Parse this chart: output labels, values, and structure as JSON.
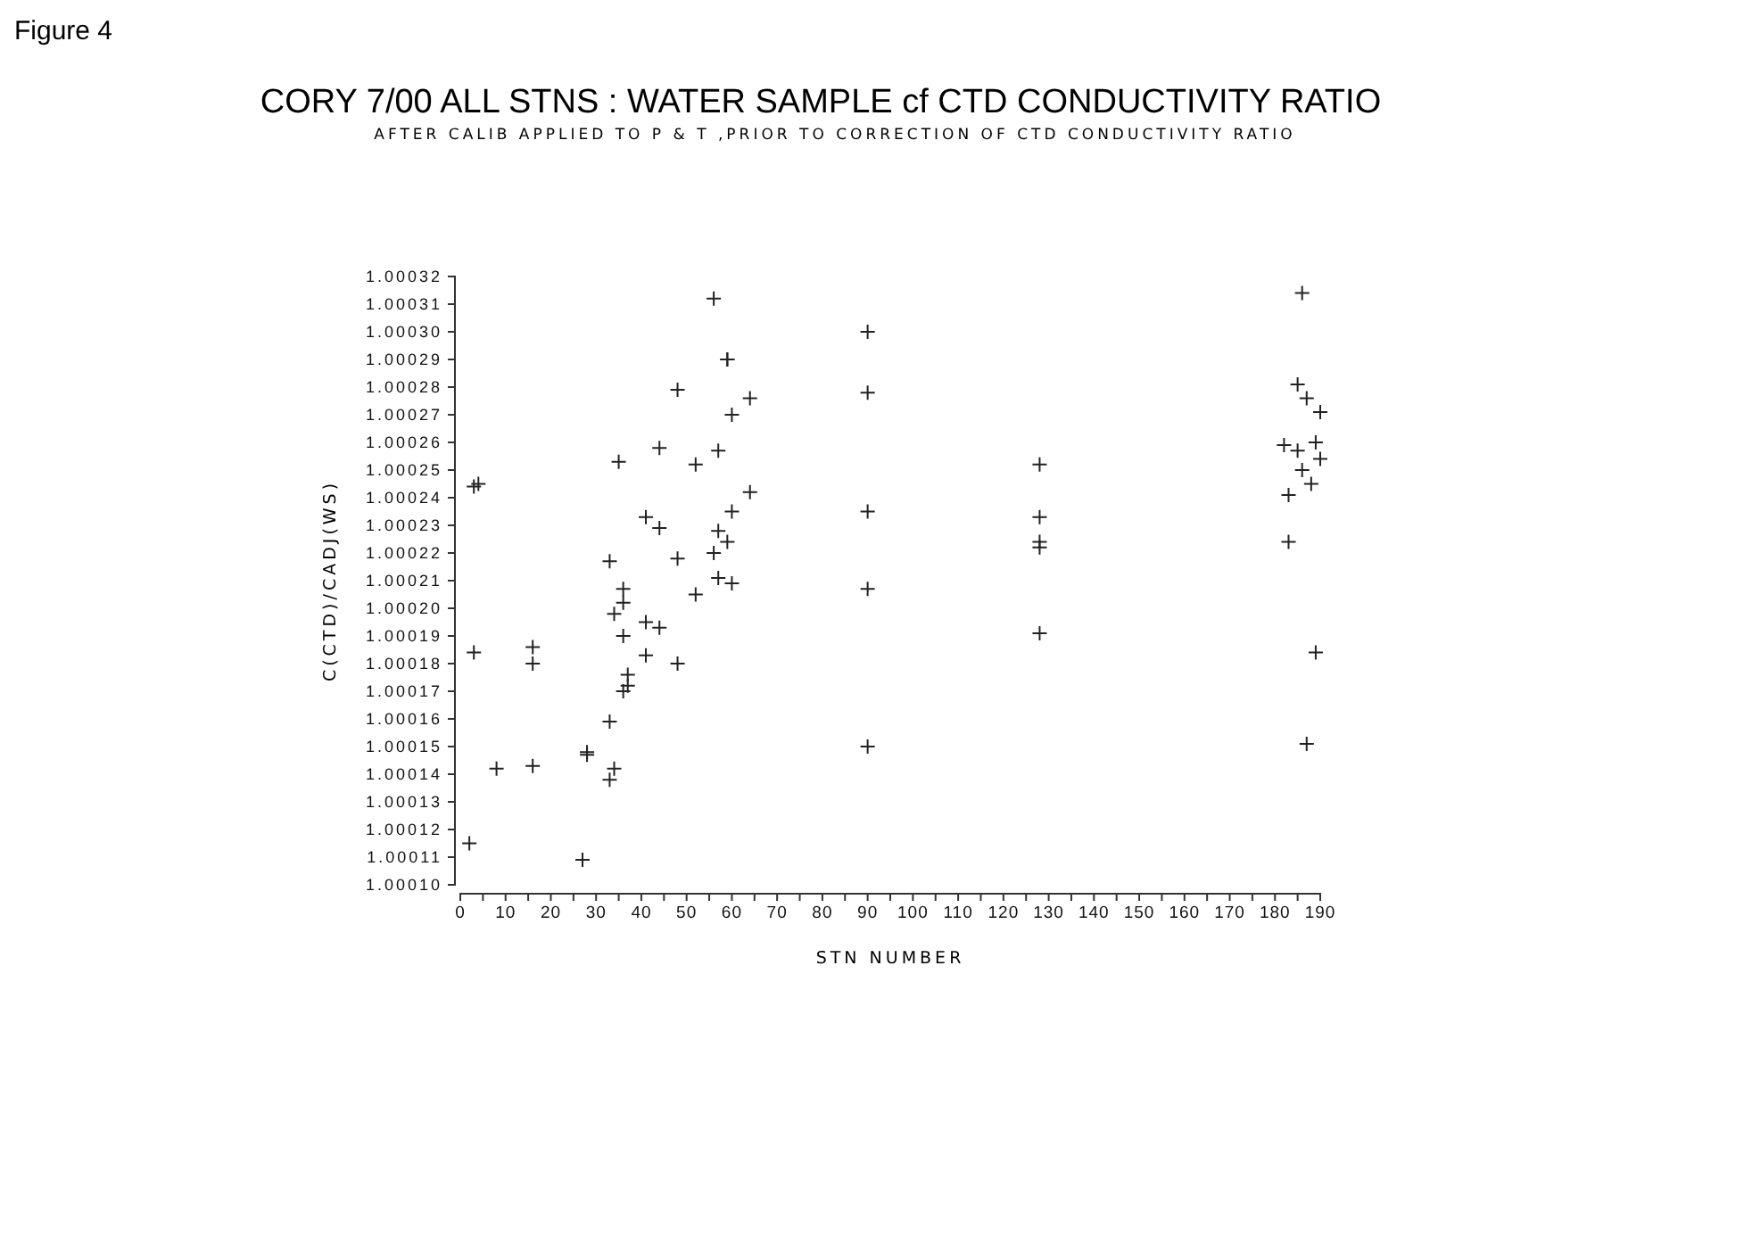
{
  "chart_data": {
    "type": "scatter",
    "title": "CORY 7/00 ALL STNS : WATER SAMPLE cf CTD CONDUCTIVITY RATIO",
    "subtitle": "AFTER CALIB APPLIED TO P & T ,PRIOR TO CORRECTION OF CTD CONDUCTIVITY RATIO",
    "annotations": [
      "Figure 4"
    ],
    "xlabel": "STN NUMBER",
    "ylabel": "C(CTD)/CADJ(WS)",
    "marker": "cross",
    "grid": false,
    "xlim": [
      0,
      190
    ],
    "ylim": [
      1.0001,
      1.00032
    ],
    "xticks": [
      0,
      {
        "value": 5,
        "label": null
      },
      10,
      {
        "value": 15,
        "label": null
      },
      20,
      {
        "value": 25,
        "label": null
      },
      30,
      {
        "value": 35,
        "label": null
      },
      40,
      {
        "value": 45,
        "label": null
      },
      50,
      {
        "value": 55,
        "label": null
      },
      60,
      {
        "value": 65,
        "label": null
      },
      70,
      {
        "value": 75,
        "label": null
      },
      80,
      {
        "value": 85,
        "label": null
      },
      90,
      {
        "value": 95,
        "label": null
      },
      100,
      {
        "value": 105,
        "label": null
      },
      110,
      {
        "value": 115,
        "label": null
      },
      120,
      {
        "value": 125,
        "label": null
      },
      130,
      {
        "value": 135,
        "label": null
      },
      140,
      {
        "value": 145,
        "label": null
      },
      150,
      {
        "value": 155,
        "label": null
      },
      160,
      {
        "value": 165,
        "label": null
      },
      170,
      {
        "value": 175,
        "label": null
      },
      180,
      {
        "value": 185,
        "label": null
      },
      190
    ],
    "yticks": [
      {
        "value": 1.0001,
        "label": "1.00010"
      },
      {
        "value": 1.00011,
        "label": "1.00011"
      },
      {
        "value": 1.00012,
        "label": "1.00012"
      },
      {
        "value": 1.00013,
        "label": "1.00013"
      },
      {
        "value": 1.00014,
        "label": "1.00014"
      },
      {
        "value": 1.00015,
        "label": "1.00015"
      },
      {
        "value": 1.00016,
        "label": "1.00016"
      },
      {
        "value": 1.00017,
        "label": "1.00017"
      },
      {
        "value": 1.00018,
        "label": "1.00018"
      },
      {
        "value": 1.00019,
        "label": "1.00019"
      },
      {
        "value": 1.0002,
        "label": "1.00020"
      },
      {
        "value": 1.00021,
        "label": "1.00021"
      },
      {
        "value": 1.00022,
        "label": "1.00022"
      },
      {
        "value": 1.00023,
        "label": "1.00023"
      },
      {
        "value": 1.00024,
        "label": "1.00024"
      },
      {
        "value": 1.00025,
        "label": "1.00025"
      },
      {
        "value": 1.00026,
        "label": "1.00026"
      },
      {
        "value": 1.00027,
        "label": "1.00027"
      },
      {
        "value": 1.00028,
        "label": "1.00028"
      },
      {
        "value": 1.00029,
        "label": "1.00029"
      },
      {
        "value": 1.0003,
        "label": "1.00030"
      },
      {
        "value": 1.00031,
        "label": "1.00031"
      },
      {
        "value": 1.00032,
        "label": "1.00032"
      }
    ],
    "series": [
      {
        "color": "#222222",
        "x": [
          2,
          3,
          4,
          3,
          8,
          16,
          16,
          16,
          28,
          28,
          27,
          34,
          33,
          33,
          33,
          35,
          36,
          36,
          34,
          36,
          37,
          37,
          36,
          41,
          41,
          41,
          44,
          44,
          44,
          48,
          48,
          48,
          52,
          52,
          56,
          56,
          57,
          57,
          57,
          59,
          59,
          59,
          60,
          60,
          60,
          64,
          64,
          90,
          90,
          90,
          90,
          90,
          128,
          128,
          128,
          128,
          128,
          186,
          185,
          187,
          190,
          182,
          185,
          189,
          190,
          186,
          188,
          183,
          183,
          189,
          187
        ],
        "values": [
          1.000115,
          1.000244,
          1.000245,
          1.000184,
          1.000142,
          1.000186,
          1.00018,
          1.000143,
          1.000148,
          1.000147,
          1.000109,
          1.000142,
          1.000138,
          1.000159,
          1.000217,
          1.000253,
          1.000207,
          1.000202,
          1.000198,
          1.00019,
          1.000176,
          1.000172,
          1.00017,
          1.000233,
          1.000195,
          1.000183,
          1.000258,
          1.000229,
          1.000193,
          1.000279,
          1.000218,
          1.00018,
          1.000252,
          1.000205,
          1.000312,
          1.00022,
          1.000257,
          1.000228,
          1.000211,
          1.00029,
          1.00029,
          1.000224,
          1.00027,
          1.000235,
          1.000209,
          1.000276,
          1.000242,
          1.0003,
          1.000278,
          1.000235,
          1.000207,
          1.00015,
          1.000252,
          1.000233,
          1.000224,
          1.000222,
          1.000191,
          1.000314,
          1.000281,
          1.000276,
          1.000271,
          1.000259,
          1.000257,
          1.00026,
          1.000254,
          1.00025,
          1.000245,
          1.000241,
          1.000224,
          1.000184,
          1.000151
        ]
      }
    ]
  }
}
